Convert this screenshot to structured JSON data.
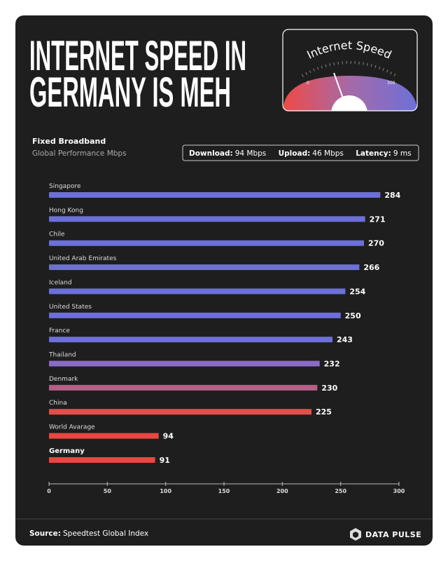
{
  "header": {
    "title": [
      "INTERNET SPEED IN",
      "GERMANY IS MEH"
    ]
  },
  "gauge": {
    "title": "Internet Speed",
    "min_label": "0",
    "max_label": "300"
  },
  "subtitle": {
    "heading": "Fixed Broadband",
    "text": "Global Performance Mbps"
  },
  "stats": [
    {
      "label": "Download:",
      "value": "94 Mbps"
    },
    {
      "label": "Upload:",
      "value": "46 Mbps"
    },
    {
      "label": "Latency:",
      "value": "9 ms"
    }
  ],
  "chart_data": {
    "type": "hbar",
    "categories": [
      "Singapore",
      "Hong Kong",
      "Chile",
      "United Arab Emirates",
      "Iceland",
      "United States",
      "France",
      "Thailand",
      "Denmark",
      "China",
      "World Avarage",
      "Germany"
    ],
    "values": [
      284,
      271,
      270,
      266,
      254,
      250,
      243,
      232,
      230,
      225,
      94,
      91
    ],
    "colors": [
      "#6d70d8",
      "#6d70d8",
      "#6d70d8",
      "#6d70d8",
      "#6d70d8",
      "#6d70d8",
      "#6d70d8",
      "#8a6cc4",
      "#b45f86",
      "#e2504b",
      "#ea4640",
      "#ea4640"
    ],
    "xlim": [
      0,
      300
    ],
    "xticks": [
      0,
      50,
      100,
      150,
      200,
      250,
      300
    ]
  },
  "footer": {
    "source_label": "Source:",
    "source": "Speedtest Global Index",
    "brand": "DATA PULSE"
  }
}
